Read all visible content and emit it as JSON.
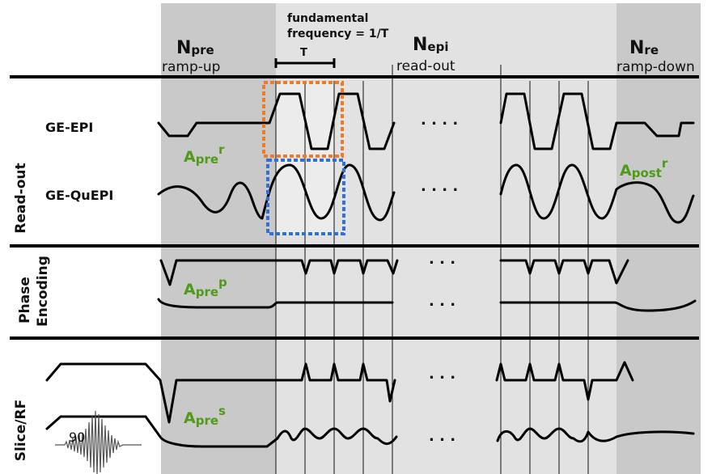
{
  "phases": {
    "pre": {
      "symbol": "N",
      "sub": "pre",
      "caption": "ramp-up"
    },
    "epi": {
      "symbol": "N",
      "sub": "epi",
      "caption": "read-out"
    },
    "re": {
      "symbol": "N",
      "sub": "re",
      "caption": "ramp-down"
    }
  },
  "fundamental": {
    "line1": "fundamental",
    "line2": "frequency = 1/T",
    "period_label": "T"
  },
  "rows": {
    "readout": {
      "label": "Read-out",
      "ge_epi": "GE-EPI",
      "ge_quepi": "GE-QuEPI"
    },
    "phase": {
      "label_line1": "Phase",
      "label_line2": "Encoding"
    },
    "slice": {
      "label": "Slice/RF",
      "rf_angle": "90"
    }
  },
  "areas": {
    "apre_r": {
      "base": "A",
      "sub": "pre",
      "sup": "r"
    },
    "apost_r": {
      "base": "A",
      "sub": "post",
      "sup": "r"
    },
    "apre_p": {
      "base": "A",
      "sub": "pre",
      "sup": "p"
    },
    "apre_s": {
      "base": "A",
      "sub": "pre",
      "sup": "s"
    }
  },
  "ellipsis": ". . . .",
  "ellipsis_short": ". . .",
  "colors": {
    "ramp_shade": "#c9c9c9",
    "readout_shade": "#e2e2e2",
    "highlight_fill": "#ececec",
    "orange_box": "#f07a2a",
    "blue_box": "#2f6fdc",
    "area_label": "#4f9a16"
  }
}
